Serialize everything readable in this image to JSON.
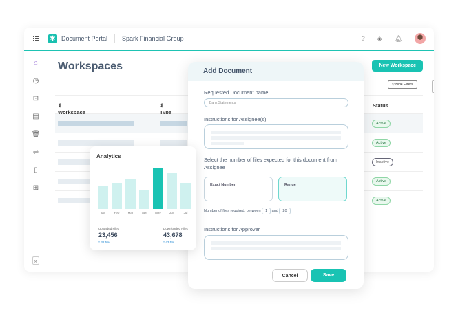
{
  "header": {
    "app_name": "Document Portal",
    "org": "Spark Financial Group"
  },
  "page": {
    "title": "Workspaces",
    "new_button": "New Workspace",
    "hide_filters": "Hide Filters"
  },
  "table": {
    "columns": [
      "Workspace Name",
      "Type",
      "Status"
    ],
    "statuses": [
      "Active",
      "Active",
      "Inactive",
      "Active",
      "Active"
    ]
  },
  "modal": {
    "title": "Add Document",
    "name_label": "Requested Document name",
    "name_value": "Bank Statements",
    "instructions_label": "Instructions for Assignee(s)",
    "files_label": "Select the number of files expected for this document from Assignee",
    "opt_exact": "Exact Number",
    "opt_range": "Range",
    "between_label": "Number of files required: between",
    "min": "1",
    "and": "and",
    "max": "20",
    "approver_label": "Instructions for Approver",
    "cancel": "Cancel",
    "save": "Save"
  },
  "analytics": {
    "title": "Analytics",
    "uploaded_label": "Uploaded Files",
    "uploaded_value": "23,456",
    "uploaded_change": "^ 32.5%",
    "downloaded_label": "Downloaded Files",
    "downloaded_value": "43,678",
    "downloaded_change": "^ 43.5%"
  },
  "chart_data": {
    "type": "bar",
    "categories": [
      "Jan",
      "Feb",
      "Mar",
      "Apr",
      "May",
      "Jun",
      "Jul"
    ],
    "values": [
      33,
      38,
      44,
      27,
      59,
      53,
      38
    ],
    "highlight": "May",
    "colors": {
      "bar": "#cff1ef",
      "highlight": "#19c3b3"
    }
  },
  "colors": {
    "accent": "#19c3b3"
  }
}
